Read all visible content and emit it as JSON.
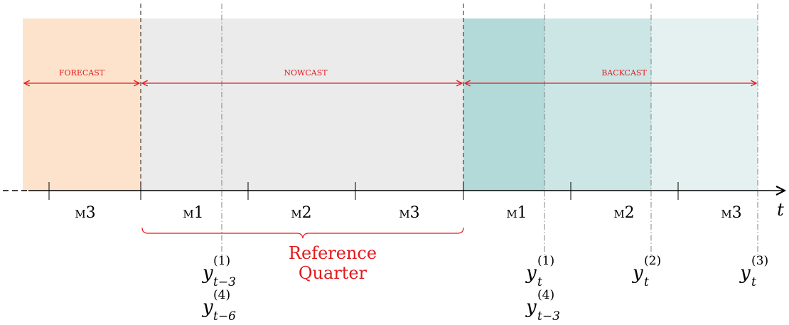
{
  "phases": [
    {
      "label": "forecast",
      "color": "#fee3cc"
    },
    {
      "label": "nowcast",
      "color": "#ebebeb"
    },
    {
      "label": "backcast",
      "colors": [
        "#b3d9d9",
        "#cce6e6",
        "#e5f1f1"
      ]
    }
  ],
  "months": [
    "m3",
    "m1",
    "m2",
    "m3",
    "m1",
    "m2",
    "m3"
  ],
  "axis_label": "t",
  "reference_label": [
    "Reference",
    "Quarter"
  ],
  "accent_color": "#e31a1c",
  "release_labels": [
    {
      "id": "y1-t-3",
      "base": "y",
      "sup": "(1)",
      "sub": "t−3"
    },
    {
      "id": "y4-t-6",
      "base": "y",
      "sup": "(4)",
      "sub": "t−6"
    },
    {
      "id": "y1-t",
      "base": "y",
      "sup": "(1)",
      "sub": "t"
    },
    {
      "id": "y4-t-3",
      "base": "y",
      "sup": "(4)",
      "sub": "t−3"
    },
    {
      "id": "y2-t",
      "base": "y",
      "sup": "(2)",
      "sub": "t"
    },
    {
      "id": "y3-t",
      "base": "y",
      "sup": "(3)",
      "sub": "t"
    }
  ]
}
